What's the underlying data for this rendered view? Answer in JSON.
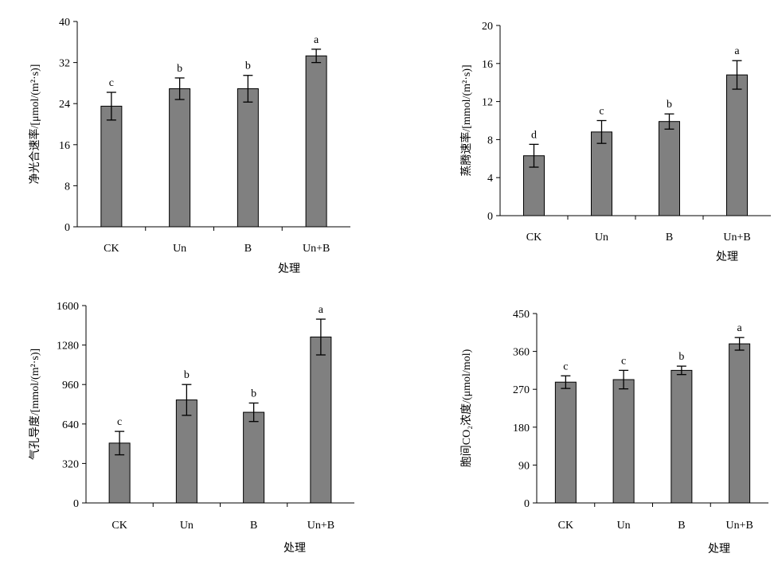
{
  "chart_data": [
    {
      "type": "bar",
      "categories": [
        "CK",
        "Un",
        "B",
        "Un+B"
      ],
      "values": [
        23.5,
        26.9,
        26.9,
        33.3
      ],
      "errors": [
        2.7,
        2.1,
        2.6,
        1.3
      ],
      "significance": [
        "c",
        "b",
        "b",
        "a"
      ],
      "ylabel": "净光合速率/[μmol/(m²·s)]",
      "xlabel": "处理",
      "ylim": [
        0,
        40
      ],
      "yticks": [
        0,
        8,
        16,
        24,
        32,
        40
      ],
      "bar_color": "#808080"
    },
    {
      "type": "bar",
      "categories": [
        "CK",
        "Un",
        "B",
        "Un+B"
      ],
      "values": [
        6.3,
        8.8,
        9.9,
        14.8
      ],
      "errors": [
        1.2,
        1.2,
        0.8,
        1.5
      ],
      "significance": [
        "d",
        "c",
        "b",
        "a"
      ],
      "ylabel": "蒸腾速率/[mmol/(m²·s)]",
      "xlabel": "处理",
      "ylim": [
        0,
        20
      ],
      "yticks": [
        0,
        4,
        8,
        12,
        16,
        20
      ],
      "bar_color": "#808080"
    },
    {
      "type": "bar",
      "categories": [
        "CK",
        "Un",
        "B",
        "Un+B"
      ],
      "values": [
        485,
        835,
        735,
        1345
      ],
      "errors": [
        95,
        125,
        75,
        145
      ],
      "significance": [
        "c",
        "b",
        "b",
        "a"
      ],
      "ylabel": "气孔导度/[mmol/(m²·s)]",
      "xlabel": "处理",
      "ylim": [
        0,
        1600
      ],
      "yticks": [
        0,
        320,
        640,
        960,
        1280,
        1600
      ],
      "bar_color": "#808080"
    },
    {
      "type": "bar",
      "categories": [
        "CK",
        "Un",
        "B",
        "Un+B"
      ],
      "values": [
        287,
        293,
        315,
        378
      ],
      "errors": [
        15,
        22,
        10,
        15
      ],
      "significance": [
        "c",
        "c",
        "b",
        "a"
      ],
      "ylabel": "胞间CO₂浓度/(μmol/mol)",
      "xlabel": "处理",
      "ylim": [
        0,
        450
      ],
      "yticks": [
        0,
        90,
        180,
        270,
        360,
        450
      ],
      "bar_color": "#808080"
    }
  ]
}
